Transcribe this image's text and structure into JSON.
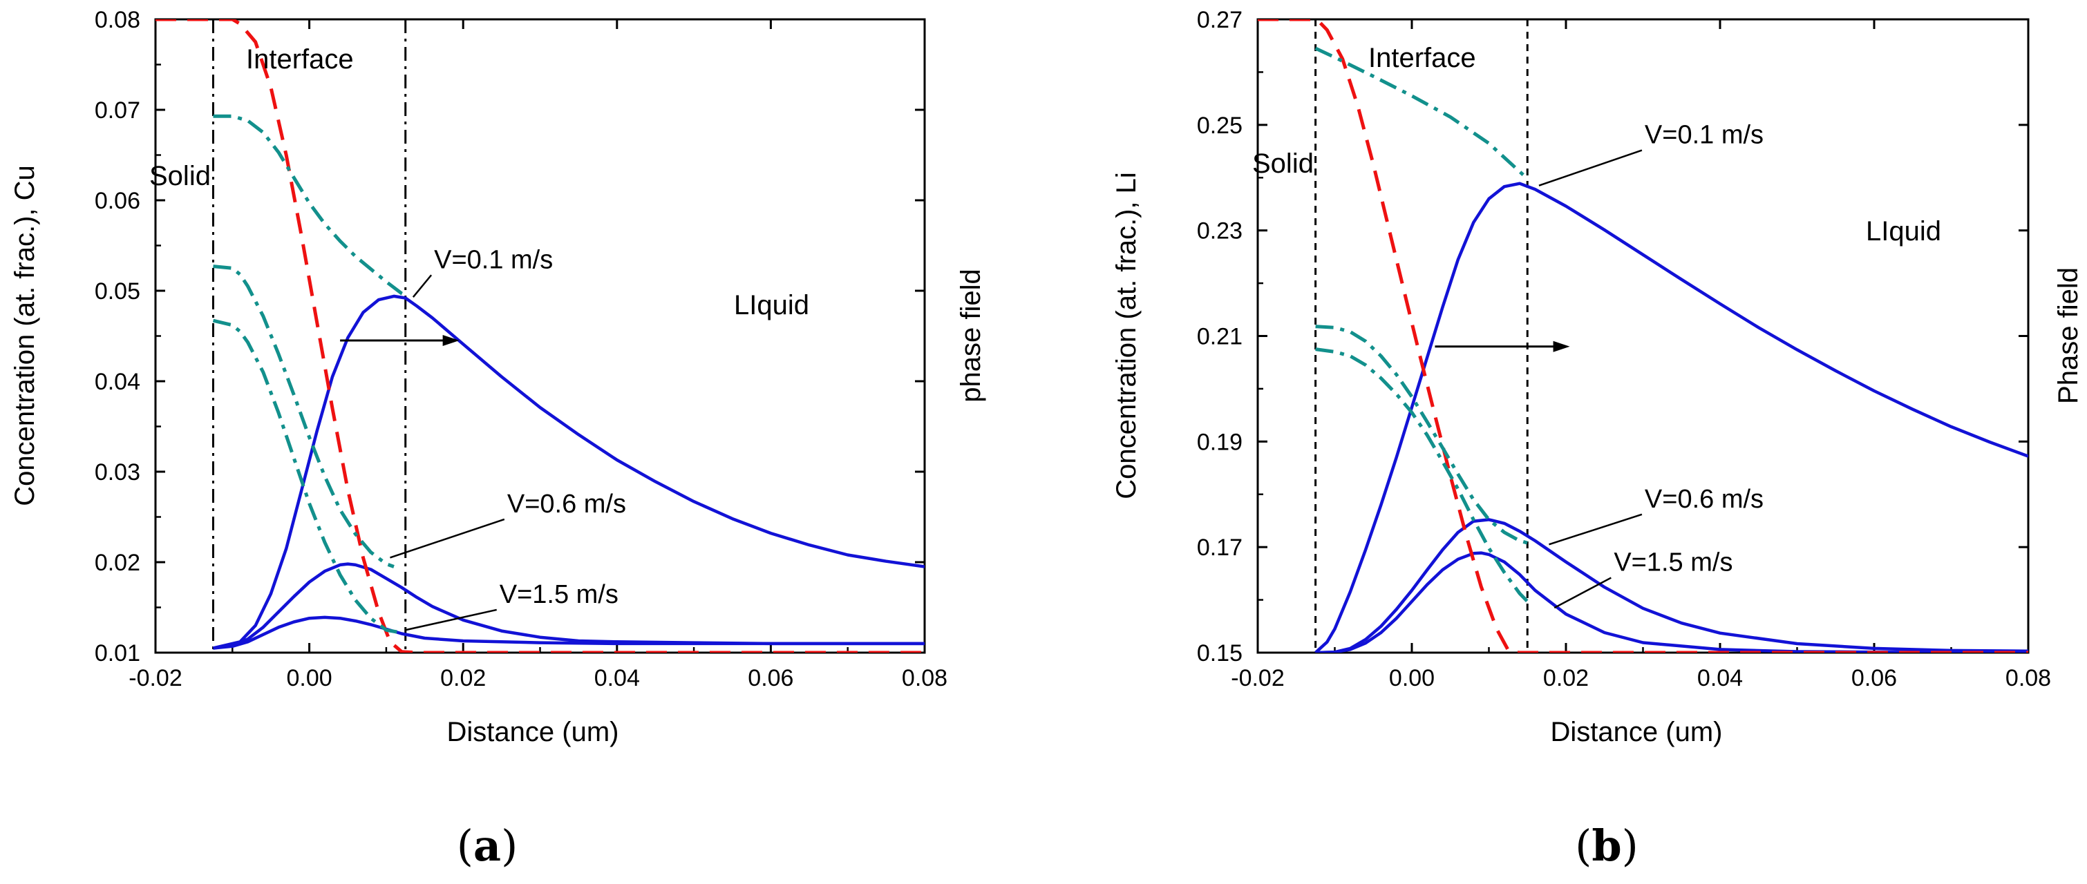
{
  "chart_data": [
    {
      "type": "line",
      "panel_label": "a",
      "xlabel": "Distance (um)",
      "ylabel": "Concentration (at. frac.), Cu",
      "right_label": "phase field",
      "xlim": [
        -0.02,
        0.08
      ],
      "ylim": [
        0.01,
        0.08
      ],
      "xticks": [
        -0.02,
        0.0,
        0.02,
        0.04,
        0.06,
        0.08
      ],
      "xtick_labels": [
        "-0.02",
        "0.00",
        "0.02",
        "0.04",
        "0.06",
        "0.08"
      ],
      "yticks": [
        0.01,
        0.02,
        0.03,
        0.04,
        0.05,
        0.06,
        0.07,
        0.08
      ],
      "ytick_labels": [
        "0.01",
        "0.02",
        "0.03",
        "0.04",
        "0.05",
        "0.06",
        "0.07",
        "0.08"
      ],
      "vlines": [
        -0.0125,
        0.0125
      ],
      "region_labels": {
        "solid": "Solid",
        "interface": "Interface",
        "liquid": "LIquid"
      },
      "arrow": {
        "from": [
          0.004,
          0.0445
        ],
        "to": [
          0.0195,
          0.0445
        ]
      },
      "annotations": [
        {
          "text": "V=0.1 m/s",
          "anchor": [
            0.0155,
            0.0525
          ],
          "target": [
            0.0135,
            0.0493
          ]
        },
        {
          "text": "V=0.6 m/s",
          "anchor": [
            0.025,
            0.0255
          ],
          "target": [
            0.0105,
            0.0205
          ]
        },
        {
          "text": "V=1.5 m/s",
          "anchor": [
            0.024,
            0.0155
          ],
          "target": [
            0.0125,
            0.0125
          ]
        }
      ],
      "series": [
        {
          "name": "concentration V=0.1 m/s",
          "style": "solid-blue",
          "x": [
            -0.0125,
            -0.009,
            -0.007,
            -0.005,
            -0.003,
            -0.001,
            0.001,
            0.003,
            0.005,
            0.007,
            0.009,
            0.011,
            0.0125,
            0.014,
            0.016,
            0.02,
            0.025,
            0.03,
            0.035,
            0.04,
            0.045,
            0.05,
            0.055,
            0.06,
            0.065,
            0.07,
            0.075,
            0.08
          ],
          "y": [
            0.0105,
            0.0112,
            0.013,
            0.0165,
            0.0215,
            0.028,
            0.0345,
            0.0405,
            0.0448,
            0.0476,
            0.049,
            0.0494,
            0.0492,
            0.0483,
            0.047,
            0.0441,
            0.0405,
            0.0371,
            0.0341,
            0.0313,
            0.0289,
            0.0267,
            0.0248,
            0.0232,
            0.0219,
            0.0208,
            0.0201,
            0.0195
          ]
        },
        {
          "name": "concentration V=0.6 m/s",
          "style": "solid-blue",
          "x": [
            -0.0125,
            -0.01,
            -0.008,
            -0.006,
            -0.004,
            -0.002,
            0.0,
            0.002,
            0.004,
            0.005,
            0.006,
            0.008,
            0.01,
            0.012,
            0.014,
            0.016,
            0.02,
            0.025,
            0.03,
            0.035,
            0.04,
            0.05,
            0.06,
            0.08
          ],
          "y": [
            0.0105,
            0.0108,
            0.0115,
            0.0128,
            0.0145,
            0.0162,
            0.0178,
            0.019,
            0.0197,
            0.0198,
            0.0197,
            0.0192,
            0.0182,
            0.0172,
            0.0161,
            0.0151,
            0.0136,
            0.0124,
            0.0117,
            0.0113,
            0.0112,
            0.0111,
            0.011,
            0.011
          ]
        },
        {
          "name": "concentration V=1.5 m/s",
          "style": "solid-blue",
          "x": [
            -0.0125,
            -0.01,
            -0.008,
            -0.006,
            -0.004,
            -0.002,
            0.0,
            0.002,
            0.004,
            0.006,
            0.008,
            0.01,
            0.012,
            0.015,
            0.02,
            0.03,
            0.04,
            0.06,
            0.08
          ],
          "y": [
            0.0105,
            0.0107,
            0.0112,
            0.012,
            0.0128,
            0.0134,
            0.0138,
            0.0139,
            0.0138,
            0.0135,
            0.0131,
            0.0126,
            0.0121,
            0.0116,
            0.0113,
            0.0111,
            0.011,
            0.011,
            0.011
          ]
        },
        {
          "name": "phase field",
          "style": "dashed-red",
          "x": [
            -0.02,
            -0.01,
            -0.009,
            -0.007,
            -0.005,
            -0.003,
            -0.001,
            0.001,
            0.003,
            0.005,
            0.007,
            0.009,
            0.0105,
            0.012,
            0.014,
            0.08
          ],
          "y": [
            0.08,
            0.08,
            0.0795,
            0.0775,
            0.0725,
            0.065,
            0.056,
            0.0465,
            0.037,
            0.028,
            0.0205,
            0.0145,
            0.0112,
            0.0101,
            0.01,
            0.01
          ]
        },
        {
          "name": "interface trace V=0.1 m/s",
          "style": "dashdot-teal",
          "x": [
            -0.0125,
            -0.01,
            -0.008,
            -0.006,
            -0.004,
            -0.002,
            0.0,
            0.002,
            0.004,
            0.006,
            0.008,
            0.01,
            0.012,
            0.0125
          ],
          "y": [
            0.0693,
            0.0693,
            0.0688,
            0.0675,
            0.0653,
            0.0625,
            0.0597,
            0.0574,
            0.0555,
            0.0538,
            0.0524,
            0.051,
            0.0497,
            0.0495
          ]
        },
        {
          "name": "interface trace V=0.6 m/s",
          "style": "dashdot-teal",
          "x": [
            -0.0125,
            -0.01,
            -0.009,
            -0.008,
            -0.006,
            -0.004,
            -0.002,
            0.0,
            0.002,
            0.004,
            0.006,
            0.008,
            0.01,
            0.011
          ],
          "y": [
            0.0527,
            0.0525,
            0.0518,
            0.0505,
            0.0472,
            0.043,
            0.0385,
            0.0338,
            0.0295,
            0.0258,
            0.0231,
            0.0211,
            0.0198,
            0.0195
          ]
        },
        {
          "name": "interface trace V=1.5 m/s",
          "style": "dashdot-teal",
          "x": [
            -0.0125,
            -0.01,
            -0.009,
            -0.008,
            -0.006,
            -0.004,
            -0.002,
            0.0,
            0.002,
            0.004,
            0.006,
            0.008,
            0.01,
            0.012
          ],
          "y": [
            0.0467,
            0.0462,
            0.0455,
            0.0443,
            0.041,
            0.0365,
            0.0315,
            0.0265,
            0.0222,
            0.0186,
            0.0158,
            0.0138,
            0.0125,
            0.0122
          ]
        }
      ]
    },
    {
      "type": "line",
      "panel_label": "b",
      "xlabel": "Distance (um)",
      "ylabel": "Concentration (at. frac.), Li",
      "right_label": "Phase field",
      "xlim": [
        -0.02,
        0.08
      ],
      "ylim": [
        0.15,
        0.27
      ],
      "xticks": [
        -0.02,
        0.0,
        0.02,
        0.04,
        0.06,
        0.08
      ],
      "xtick_labels": [
        "-0.02",
        "0.00",
        "0.02",
        "0.04",
        "0.06",
        "0.08"
      ],
      "yticks": [
        0.15,
        0.17,
        0.19,
        0.21,
        0.23,
        0.25,
        0.27
      ],
      "ytick_labels": [
        "0.15",
        "0.17",
        "0.19",
        "0.21",
        "0.23",
        "0.25",
        "0.27"
      ],
      "vlines": [
        -0.0125,
        0.015
      ],
      "region_labels": {
        "solid": "Solid",
        "interface": "Interface",
        "liquid": "LIquid"
      },
      "arrow": {
        "from": [
          0.003,
          0.208
        ],
        "to": [
          0.0205,
          0.208
        ]
      },
      "annotations": [
        {
          "text": "V=0.1 m/s",
          "anchor": [
            0.0295,
            0.2465
          ],
          "target": [
            0.0165,
            0.2385
          ]
        },
        {
          "text": "V=0.6 m/s",
          "anchor": [
            0.0295,
            0.1775
          ],
          "target": [
            0.0178,
            0.1705
          ]
        },
        {
          "text": "V=1.5 m/s",
          "anchor": [
            0.0255,
            0.1655
          ],
          "target": [
            0.0185,
            0.1585
          ]
        }
      ],
      "series": [
        {
          "name": "concentration V=0.1 m/s",
          "style": "solid-blue",
          "x": [
            -0.0125,
            -0.011,
            -0.01,
            -0.008,
            -0.006,
            -0.004,
            -0.002,
            0.0,
            0.002,
            0.004,
            0.006,
            0.008,
            0.01,
            0.012,
            0.014,
            0.016,
            0.02,
            0.025,
            0.03,
            0.035,
            0.04,
            0.045,
            0.05,
            0.055,
            0.06,
            0.065,
            0.07,
            0.075,
            0.08
          ],
          "y": [
            0.15,
            0.152,
            0.1545,
            0.1615,
            0.1695,
            0.178,
            0.187,
            0.1965,
            0.206,
            0.2155,
            0.2245,
            0.2315,
            0.236,
            0.2383,
            0.2389,
            0.2378,
            0.2346,
            0.2301,
            0.2254,
            0.2207,
            0.2161,
            0.2116,
            0.2074,
            0.2034,
            0.1996,
            0.1961,
            0.1928,
            0.1899,
            0.1872
          ]
        },
        {
          "name": "concentration V=0.6 m/s",
          "style": "solid-blue",
          "x": [
            -0.0125,
            -0.01,
            -0.008,
            -0.006,
            -0.004,
            -0.002,
            0.0,
            0.002,
            0.004,
            0.006,
            0.008,
            0.01,
            0.012,
            0.014,
            0.016,
            0.02,
            0.025,
            0.03,
            0.035,
            0.04,
            0.05,
            0.06,
            0.07,
            0.08
          ],
          "y": [
            0.15,
            0.1501,
            0.1508,
            0.1525,
            0.155,
            0.1582,
            0.1618,
            0.1657,
            0.1695,
            0.1728,
            0.1749,
            0.1752,
            0.1745,
            0.173,
            0.1712,
            0.1672,
            0.1624,
            0.1584,
            0.1556,
            0.1537,
            0.1517,
            0.1508,
            0.1504,
            0.1503
          ]
        },
        {
          "name": "concentration V=1.5 m/s",
          "style": "solid-blue",
          "x": [
            -0.0125,
            -0.01,
            -0.008,
            -0.006,
            -0.004,
            -0.002,
            0.0,
            0.002,
            0.004,
            0.006,
            0.008,
            0.009,
            0.01,
            0.012,
            0.014,
            0.016,
            0.02,
            0.025,
            0.03,
            0.04,
            0.05,
            0.06,
            0.08
          ],
          "y": [
            0.15,
            0.1501,
            0.1506,
            0.1518,
            0.1538,
            0.1565,
            0.1597,
            0.1629,
            0.1657,
            0.1677,
            0.1688,
            0.1689,
            0.1686,
            0.1672,
            0.1648,
            0.1618,
            0.1573,
            0.1538,
            0.1519,
            0.1506,
            0.1502,
            0.1501,
            0.15
          ]
        },
        {
          "name": "phase field",
          "style": "dashed-red",
          "x": [
            -0.02,
            -0.013,
            -0.012,
            -0.011,
            -0.009,
            -0.007,
            -0.005,
            -0.003,
            -0.001,
            0.001,
            0.003,
            0.005,
            0.007,
            0.009,
            0.011,
            0.0125,
            0.013,
            0.014,
            0.08
          ],
          "y": [
            0.27,
            0.27,
            0.2695,
            0.268,
            0.2625,
            0.2535,
            0.2425,
            0.2305,
            0.2185,
            0.2065,
            0.195,
            0.1835,
            0.1725,
            0.1625,
            0.1545,
            0.1505,
            0.1501,
            0.15,
            0.15
          ]
        },
        {
          "name": "interface trace V=0.1 m/s",
          "style": "dashdot-teal",
          "x": [
            -0.0125,
            -0.01,
            -0.005,
            0.0,
            0.005,
            0.01,
            0.015
          ],
          "y": [
            0.2645,
            0.2628,
            0.2592,
            0.2555,
            0.2515,
            0.2465,
            0.2398
          ]
        },
        {
          "name": "interface trace V=0.6 m/s",
          "style": "dashdot-teal",
          "x": [
            -0.0125,
            -0.01,
            -0.008,
            -0.006,
            -0.004,
            -0.002,
            0.0,
            0.002,
            0.004,
            0.006,
            0.008,
            0.01,
            0.012,
            0.014,
            0.015
          ],
          "y": [
            0.2118,
            0.2116,
            0.2108,
            0.209,
            0.2062,
            0.2027,
            0.1985,
            0.1937,
            0.1888,
            0.1838,
            0.179,
            0.1752,
            0.1728,
            0.1712,
            0.1708
          ]
        },
        {
          "name": "interface trace V=1.5 m/s",
          "style": "dashdot-teal",
          "x": [
            -0.0125,
            -0.01,
            -0.008,
            -0.006,
            -0.004,
            -0.002,
            0.0,
            0.002,
            0.004,
            0.006,
            0.008,
            0.01,
            0.012,
            0.014,
            0.015
          ],
          "y": [
            0.2075,
            0.207,
            0.2062,
            0.2045,
            0.202,
            0.199,
            0.1955,
            0.1912,
            0.1862,
            0.181,
            0.1752,
            0.1698,
            0.1652,
            0.1612,
            0.1597
          ]
        }
      ]
    }
  ]
}
